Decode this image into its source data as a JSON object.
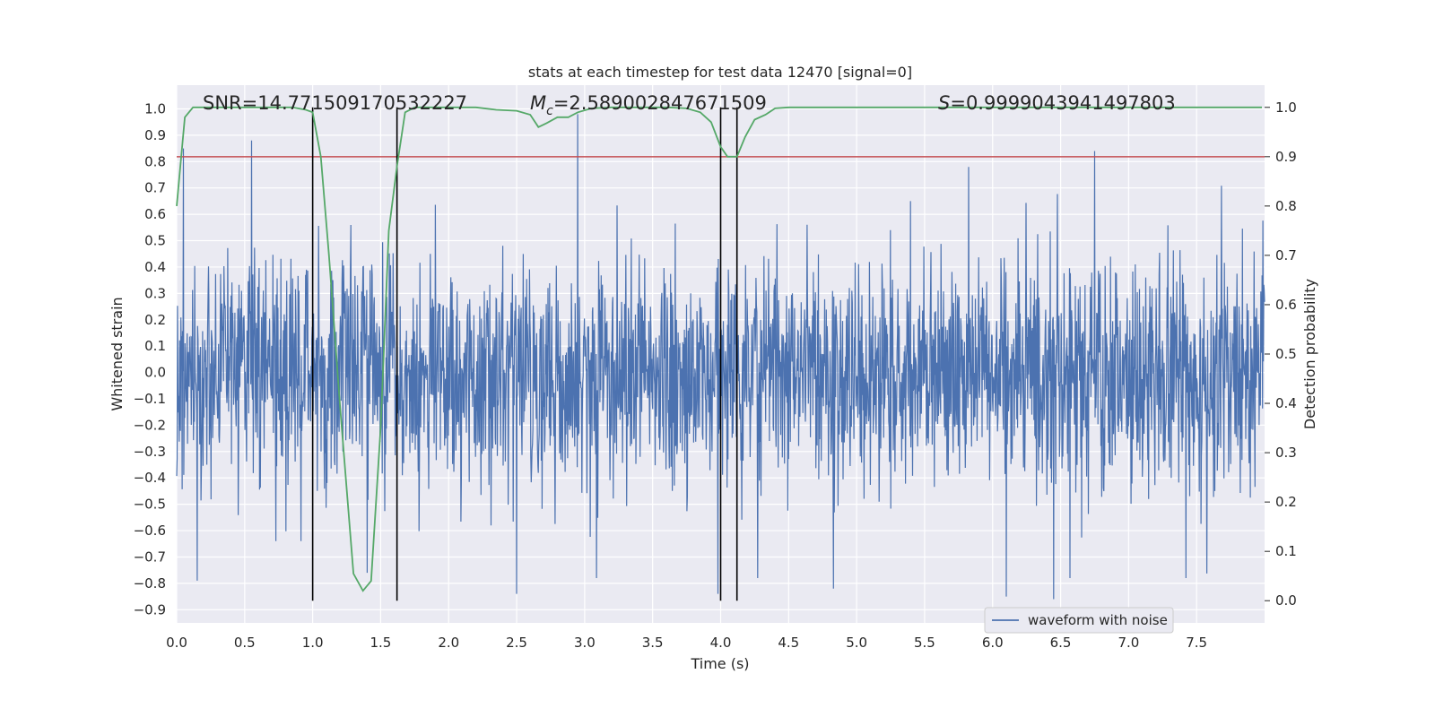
{
  "chart_data": {
    "type": "line",
    "title": "stats at each timestep for test data 12470 [signal=0]",
    "xlabel": "Time (s)",
    "ylabel": "Whitened strain",
    "y2label": "Detection probability",
    "xlim": [
      0.0,
      8.0
    ],
    "ylim": [
      -0.95,
      1.09
    ],
    "y2lim": [
      -0.045,
      1.045
    ],
    "xticks": [
      0.0,
      0.5,
      1.0,
      1.5,
      2.0,
      2.5,
      3.0,
      3.5,
      4.0,
      4.5,
      5.0,
      5.5,
      6.0,
      6.5,
      7.0,
      7.5
    ],
    "yticks": [
      -0.9,
      -0.8,
      -0.7,
      -0.6,
      -0.5,
      -0.4,
      -0.3,
      -0.2,
      -0.1,
      0.0,
      0.1,
      0.2,
      0.3,
      0.4,
      0.5,
      0.6,
      0.7,
      0.8,
      0.9,
      1.0
    ],
    "y2ticks": [
      0.0,
      0.1,
      0.2,
      0.3,
      0.4,
      0.5,
      0.6,
      0.7,
      0.8,
      0.9,
      1.0
    ],
    "grid": true,
    "legend_position": "lower-right",
    "annotations": {
      "snr": "SNR=14.771509170532227",
      "mc_symbol": "M",
      "mc_subscript": "c",
      "mc_value": "=2.589002847671509",
      "s_symbol": "S",
      "s_value": "=0.9999043941497803"
    },
    "series": [
      {
        "name": "waveform with noise",
        "color": "#4c72b0",
        "axis": "left",
        "description_values": "noise, roughly symmetric about 0, dense core within about ±0.28, peaks near 0.88",
        "sample_rate_hz": 2048,
        "duration_s": 8.0,
        "peaks": [
          {
            "x": 0.05,
            "y": 0.85
          },
          {
            "x": 0.55,
            "y": 0.88
          },
          {
            "x": 2.95,
            "y": 0.98
          },
          {
            "x": 0.15,
            "y": -0.79
          },
          {
            "x": 1.4,
            "y": -0.76
          },
          {
            "x": 2.5,
            "y": -0.84
          },
          {
            "x": 3.98,
            "y": -0.84
          },
          {
            "x": 6.1,
            "y": -0.85
          },
          {
            "x": 6.45,
            "y": -0.86
          },
          {
            "x": 6.75,
            "y": 0.84
          },
          {
            "x": 4.83,
            "y": -0.82
          }
        ]
      },
      {
        "name": "",
        "color": "#55a868",
        "axis": "right",
        "x": [
          0.0,
          0.06,
          0.12,
          0.2,
          0.35,
          0.5,
          0.7,
          0.85,
          0.95,
          1.0,
          1.06,
          1.12,
          1.2,
          1.3,
          1.37,
          1.43,
          1.5,
          1.56,
          1.62,
          1.68,
          1.75,
          1.85,
          2.0,
          2.2,
          2.35,
          2.5,
          2.6,
          2.66,
          2.72,
          2.8,
          2.88,
          2.95,
          3.05,
          3.2,
          3.4,
          3.6,
          3.75,
          3.85,
          3.93,
          4.0,
          4.05,
          4.12,
          4.18,
          4.25,
          4.33,
          4.4,
          4.5,
          5.0,
          6.0,
          7.0,
          7.98
        ],
        "y": [
          0.8,
          0.98,
          1.0,
          1.0,
          1.0,
          1.0,
          1.0,
          1.0,
          0.995,
          0.99,
          0.9,
          0.7,
          0.4,
          0.055,
          0.02,
          0.04,
          0.35,
          0.75,
          0.88,
          0.99,
          1.0,
          1.0,
          1.0,
          1.0,
          0.995,
          0.993,
          0.985,
          0.96,
          0.968,
          0.98,
          0.98,
          0.99,
          0.998,
          1.0,
          1.0,
          1.0,
          0.998,
          0.99,
          0.97,
          0.92,
          0.9,
          0.9,
          0.94,
          0.975,
          0.985,
          0.998,
          1.0,
          1.0,
          1.0,
          1.0,
          1.0
        ]
      }
    ],
    "threshold": {
      "axis": "right",
      "value": 0.9,
      "color": "#c44e52"
    },
    "vlines": {
      "x": [
        1.0,
        1.62,
        4.0,
        4.12
      ],
      "ymin": 0.0,
      "ymax": 1.0,
      "axis": "right",
      "color": "#000000"
    },
    "styles": {
      "background": "#eaeaf2",
      "grid": "#ffffff",
      "legend_bg": "#eaeaf2",
      "legend_border": "#cccccc",
      "axis_text": "#262626"
    }
  }
}
